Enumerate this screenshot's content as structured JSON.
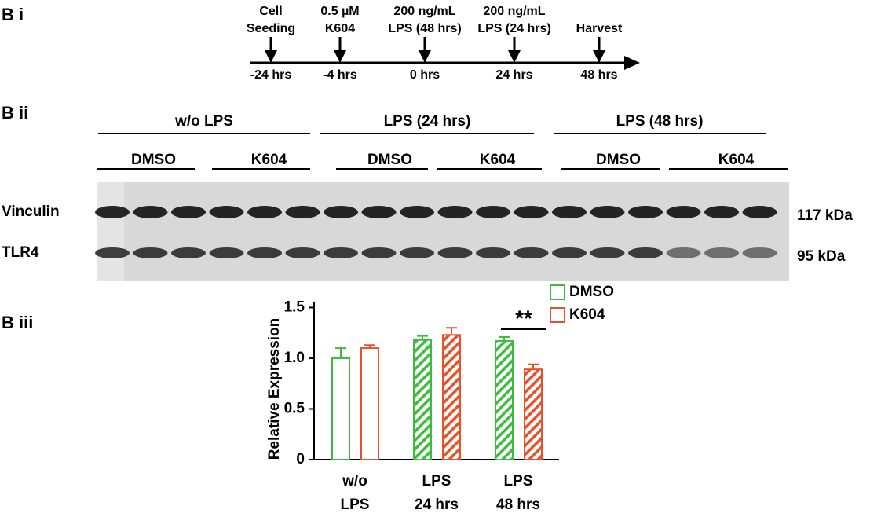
{
  "panels": {
    "i": "B i",
    "ii": "B ii",
    "iii": "B iii"
  },
  "timeline": {
    "events": [
      {
        "label": [
          "Cell",
          "Seeding"
        ],
        "time": "-24 hrs"
      },
      {
        "label": [
          "0.5 µM",
          "K604"
        ],
        "time": "-4 hrs"
      },
      {
        "label": [
          "200 ng/mL",
          "LPS (48 hrs)"
        ],
        "time": "0 hrs"
      },
      {
        "label": [
          "200 ng/mL",
          "LPS (24 hrs)"
        ],
        "time": "24 hrs"
      },
      {
        "label": [
          "Harvest"
        ],
        "time": "48 hrs"
      }
    ]
  },
  "blot": {
    "groups": [
      "w/o LPS",
      "LPS (24 hrs)",
      "LPS (48 hrs)"
    ],
    "treatments": [
      "DMSO",
      "K604",
      "DMSO",
      "K604",
      "DMSO",
      "K604"
    ],
    "rows": [
      {
        "protein": "Vinculin",
        "size": "117 kDa"
      },
      {
        "protein": "TLR4",
        "size": "95 kDa"
      }
    ]
  },
  "chart_data": {
    "type": "bar",
    "y_label": "Relative Expression",
    "categories": [
      "w/o LPS",
      "LPS 24 hrs",
      "LPS 48 hrs"
    ],
    "hatched": [
      false,
      true,
      true
    ],
    "series": [
      {
        "name": "DMSO",
        "color": "#3dbb3d",
        "values": [
          1.0,
          1.18,
          1.17
        ],
        "errors": [
          0.1,
          0.04,
          0.04
        ]
      },
      {
        "name": "K604",
        "color": "#e8502a",
        "values": [
          1.1,
          1.23,
          0.89
        ],
        "errors": [
          0.03,
          0.07,
          0.05
        ]
      }
    ],
    "ylim": [
      0,
      1.55
    ],
    "yticks": [
      0,
      0.5,
      {
        "value": 1,
        "label": "1.0"
      },
      1.5
    ],
    "annotations": [
      {
        "text": "**",
        "category": 2
      }
    ]
  }
}
